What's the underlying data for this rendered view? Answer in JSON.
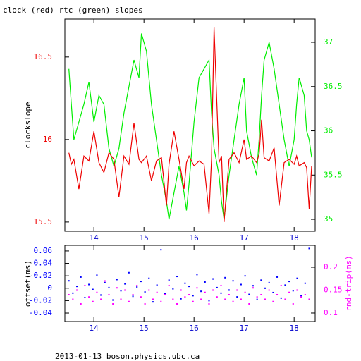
{
  "chart_data": [
    {
      "type": "line",
      "title": "clock (red) rtc (green) slopes",
      "ylabel": "clockslope",
      "xlim": [
        13.42,
        18.42
      ],
      "xticks": [
        14,
        15,
        16,
        17,
        18
      ],
      "ylim": [
        15.444,
        16.73
      ],
      "yticks": [
        15.5,
        16,
        16.5
      ],
      "y2lim": [
        34.865,
        37.263
      ],
      "y2ticks": [
        35,
        35.5,
        36,
        36.5,
        37
      ],
      "x": [
        13.5,
        13.55,
        13.6,
        13.7,
        13.8,
        13.9,
        14.0,
        14.1,
        14.2,
        14.3,
        14.4,
        14.5,
        14.6,
        14.7,
        14.8,
        14.9,
        14.95,
        15.05,
        15.15,
        15.25,
        15.35,
        15.45,
        15.5,
        15.6,
        15.7,
        15.8,
        15.85,
        15.9,
        16.0,
        16.1,
        16.2,
        16.3,
        16.35,
        16.4,
        16.5,
        16.55,
        16.6,
        16.7,
        16.8,
        16.9,
        17.0,
        17.05,
        17.15,
        17.25,
        17.3,
        17.35,
        17.4,
        17.5,
        17.6,
        17.7,
        17.8,
        17.9,
        18.0,
        18.05,
        18.1,
        18.2,
        18.25,
        18.3,
        18.35
      ],
      "series": [
        {
          "color": "#00ee00",
          "axis": "y2",
          "values": [
            36.7,
            36.3,
            35.9,
            36.1,
            36.3,
            36.55,
            36.1,
            36.4,
            36.3,
            35.8,
            35.6,
            35.8,
            36.2,
            36.5,
            36.8,
            36.6,
            37.1,
            36.9,
            36.3,
            35.9,
            35.5,
            35.2,
            35.0,
            35.3,
            35.6,
            35.3,
            35.1,
            35.4,
            36.1,
            36.6,
            36.7,
            36.8,
            36.2,
            35.8,
            35.5,
            35.2,
            35.0,
            35.5,
            35.9,
            36.3,
            36.6,
            36.0,
            35.7,
            35.5,
            35.9,
            36.4,
            36.8,
            37.0,
            36.7,
            36.3,
            35.9,
            35.6,
            35.9,
            36.3,
            36.6,
            36.4,
            36.0,
            35.9,
            35.7
          ]
        },
        {
          "color": "#ee0000",
          "axis": "y",
          "values": [
            15.92,
            15.85,
            15.88,
            15.7,
            15.9,
            15.87,
            16.05,
            15.86,
            15.8,
            15.92,
            15.88,
            15.65,
            15.9,
            15.85,
            16.1,
            15.88,
            15.86,
            15.9,
            15.75,
            15.87,
            15.89,
            15.6,
            15.85,
            16.05,
            15.88,
            15.7,
            15.86,
            15.9,
            15.84,
            15.87,
            15.85,
            15.55,
            15.88,
            16.68,
            15.86,
            15.9,
            15.5,
            15.88,
            15.92,
            15.86,
            16.0,
            15.88,
            15.9,
            15.86,
            15.91,
            16.12,
            15.89,
            15.87,
            15.95,
            15.6,
            15.86,
            15.88,
            15.85,
            15.9,
            15.84,
            15.86,
            15.83,
            15.58,
            15.84
          ]
        }
      ]
    },
    {
      "type": "scatter",
      "ylabel": "offset(ms)",
      "y2label": "rnd-trip(ms)",
      "xlim": [
        13.42,
        18.42
      ],
      "xticks": [
        14,
        15,
        16,
        17,
        18
      ],
      "ylim": [
        -0.0536,
        0.069
      ],
      "yticks": [
        -0.04,
        -0.02,
        0,
        0.02,
        0.04,
        0.06
      ],
      "y2lim": [
        0.0815,
        0.2477
      ],
      "y2ticks": [
        0.1,
        0.15,
        0.2
      ],
      "x": [
        13.5,
        13.58,
        13.66,
        13.74,
        13.82,
        13.9,
        13.98,
        14.06,
        14.14,
        14.22,
        14.3,
        14.38,
        14.46,
        14.54,
        14.62,
        14.7,
        14.78,
        14.86,
        14.94,
        15.02,
        15.1,
        15.18,
        15.26,
        15.34,
        15.42,
        15.5,
        15.58,
        15.66,
        15.74,
        15.82,
        15.9,
        15.98,
        16.06,
        16.14,
        16.22,
        16.3,
        16.38,
        16.46,
        16.54,
        16.62,
        16.7,
        16.78,
        16.86,
        16.94,
        17.02,
        17.1,
        17.18,
        17.26,
        17.34,
        17.42,
        17.5,
        17.58,
        17.66,
        17.74,
        17.82,
        17.9,
        17.98,
        18.06,
        18.14,
        18.22,
        18.3
      ],
      "series": [
        {
          "color": "#0000ff",
          "axis": "y",
          "values": [
            0.012,
            -0.008,
            0.003,
            0.018,
            -0.015,
            0.006,
            -0.002,
            0.021,
            -0.011,
            0.009,
            0.001,
            -0.019,
            0.014,
            -0.004,
            0.007,
            0.025,
            -0.013,
            0.002,
            0.011,
            -0.006,
            0.016,
            -0.022,
            0.005,
            0.062,
            -0.009,
            0.013,
            -0.001,
            0.019,
            -0.017,
            0.008,
            0.003,
            -0.012,
            0.022,
            -0.005,
            0.01,
            -0.02,
            0.015,
            0.001,
            -0.008,
            0.017,
            -0.003,
            0.012,
            -0.014,
            0.006,
            0.02,
            -0.01,
            0.004,
            -0.018,
            0.013,
            0.0,
            0.009,
            -0.007,
            0.018,
            -0.016,
            0.005,
            0.011,
            -0.004,
            0.016,
            -0.012,
            0.008,
            0.064
          ]
        },
        {
          "color": "#ff00ff",
          "axis": "y2",
          "values": [
            0.14,
            0.13,
            0.15,
            0.12,
            0.16,
            0.135,
            0.125,
            0.145,
            0.13,
            0.17,
            0.14,
            0.12,
            0.155,
            0.13,
            0.15,
            0.125,
            0.14,
            0.16,
            0.135,
            0.12,
            0.15,
            0.13,
            0.145,
            0.125,
            0.14,
            0.16,
            0.13,
            0.12,
            0.15,
            0.135,
            0.14,
            0.125,
            0.155,
            0.13,
            0.145,
            0.12,
            0.15,
            0.135,
            0.16,
            0.13,
            0.14,
            0.125,
            0.15,
            0.13,
            0.145,
            0.12,
            0.155,
            0.135,
            0.14,
            0.13,
            0.15,
            0.125,
            0.14,
            0.16,
            0.13,
            0.145,
            0.12,
            0.15,
            0.135,
            0.14,
            0.13
          ]
        }
      ]
    }
  ],
  "footer": "2013-01-13 boson.physics.ubc.ca"
}
